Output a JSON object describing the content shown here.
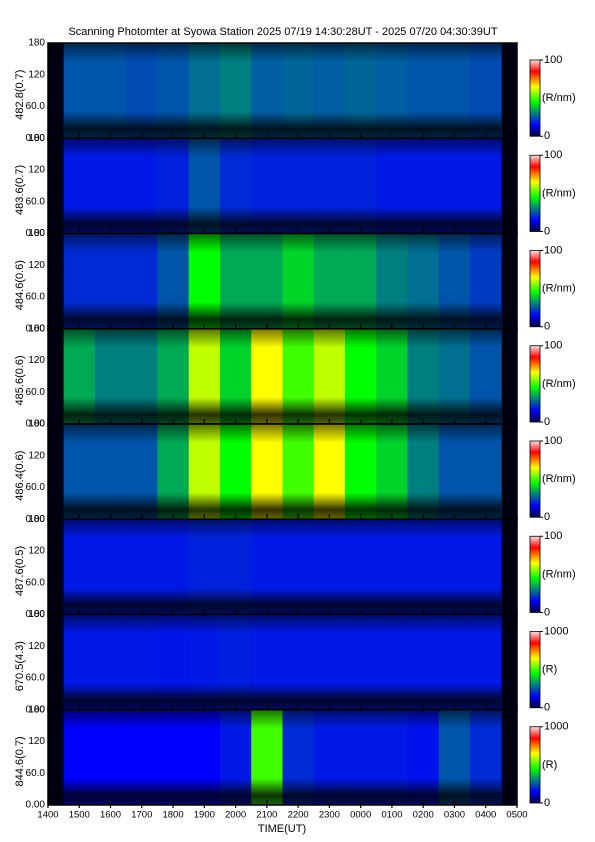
{
  "chart_data": {
    "type": "heatmap",
    "title": "Scanning Photomter at Syowa Station  2025 07/19 14:30:28UT - 2025 07/20 04:30:39UT",
    "xlabel": "TIME(UT)",
    "xticks": [
      "1400",
      "1500",
      "1600",
      "1700",
      "1800",
      "1900",
      "2000",
      "2100",
      "2200",
      "2300",
      "0000",
      "0100",
      "0200",
      "0300",
      "0400",
      "0500"
    ],
    "panels": [
      {
        "ylabel": "482.8(0.7)",
        "ylim": [
          0,
          180
        ],
        "yticks": [
          {
            "value": 0,
            "label": "0.00"
          },
          {
            "value": 60,
            "label": "60.0"
          },
          120,
          180
        ],
        "clim": [
          0,
          100
        ],
        "cbar_ticks": [
          0,
          100
        ],
        "cbar_label": "(R/nm)",
        "values": [
          25,
          25,
          24,
          25,
          28,
          30,
          26,
          27,
          26,
          27,
          26,
          25,
          25,
          24
        ]
      },
      {
        "ylabel": "483.6(0.7)",
        "ylim": [
          0,
          180
        ],
        "yticks": [
          {
            "value": 0,
            "label": "0.00"
          },
          {
            "value": 60,
            "label": "60.0"
          },
          120,
          180
        ],
        "clim": [
          0,
          100
        ],
        "cbar_ticks": [
          0,
          100
        ],
        "cbar_label": "(R/nm)",
        "values": [
          18,
          18,
          18,
          19,
          25,
          20,
          19,
          19,
          19,
          19,
          18,
          18,
          18,
          18
        ]
      },
      {
        "ylabel": "484.6(0.6)",
        "ylim": [
          0,
          180
        ],
        "yticks": [
          {
            "value": 0,
            "label": "0.00"
          },
          {
            "value": 60,
            "label": "60.0"
          },
          120,
          180
        ],
        "clim": [
          0,
          100
        ],
        "cbar_ticks": [
          0,
          100
        ],
        "cbar_label": "(R/nm)",
        "values": [
          20,
          20,
          20,
          25,
          45,
          35,
          35,
          40,
          35,
          35,
          30,
          28,
          25,
          22
        ]
      },
      {
        "ylabel": "485.6(0.6)",
        "ylim": [
          0,
          180
        ],
        "yticks": [
          {
            "value": 0,
            "label": "0.00"
          },
          {
            "value": 60,
            "label": "60.0"
          },
          120,
          180
        ],
        "clim": [
          0,
          100
        ],
        "cbar_ticks": [
          0,
          100
        ],
        "cbar_label": "(R/nm)",
        "values": [
          35,
          30,
          30,
          35,
          60,
          40,
          65,
          50,
          60,
          45,
          40,
          30,
          28,
          25
        ]
      },
      {
        "ylabel": "486.4(0.6)",
        "ylim": [
          0,
          180
        ],
        "yticks": [
          {
            "value": 0,
            "label": "0.00"
          },
          {
            "value": 60,
            "label": "60.0"
          },
          120,
          180
        ],
        "clim": [
          0,
          100
        ],
        "cbar_ticks": [
          0,
          100
        ],
        "cbar_label": "(R/nm)",
        "values": [
          25,
          25,
          25,
          35,
          60,
          45,
          65,
          50,
          65,
          45,
          40,
          30,
          25,
          25
        ]
      },
      {
        "ylabel": "487.6(0.5)",
        "ylim": [
          0,
          180
        ],
        "yticks": [
          {
            "value": 0,
            "label": "0.00"
          },
          {
            "value": 60,
            "label": "60.0"
          },
          120,
          180
        ],
        "clim": [
          0,
          100
        ],
        "cbar_ticks": [
          0,
          100
        ],
        "cbar_label": "(R/nm)",
        "values": [
          18,
          18,
          18,
          18,
          19,
          19,
          18,
          18,
          18,
          18,
          18,
          18,
          18,
          18
        ]
      },
      {
        "ylabel": "670.5(4.3)",
        "ylim": [
          0,
          180
        ],
        "yticks": [
          {
            "value": 0,
            "label": "0.00"
          },
          {
            "value": 60,
            "label": "60.0"
          },
          120,
          180
        ],
        "clim": [
          0,
          1000
        ],
        "cbar_ticks": [
          0,
          1000
        ],
        "cbar_label": "(R)",
        "values": [
          180,
          180,
          180,
          175,
          180,
          185,
          180,
          180,
          180,
          180,
          180,
          180,
          180,
          180
        ]
      },
      {
        "ylabel": "844.6(0.7)",
        "ylim": [
          0,
          180
        ],
        "yticks": [
          {
            "value": 0,
            "label": "0.00"
          },
          {
            "value": 60,
            "label": "60.0"
          },
          120,
          180
        ],
        "clim": [
          0,
          1000
        ],
        "cbar_ticks": [
          0,
          1000
        ],
        "cbar_label": "(R)",
        "values": [
          150,
          150,
          150,
          150,
          150,
          180,
          500,
          200,
          180,
          180,
          180,
          170,
          250,
          200
        ]
      }
    ]
  }
}
